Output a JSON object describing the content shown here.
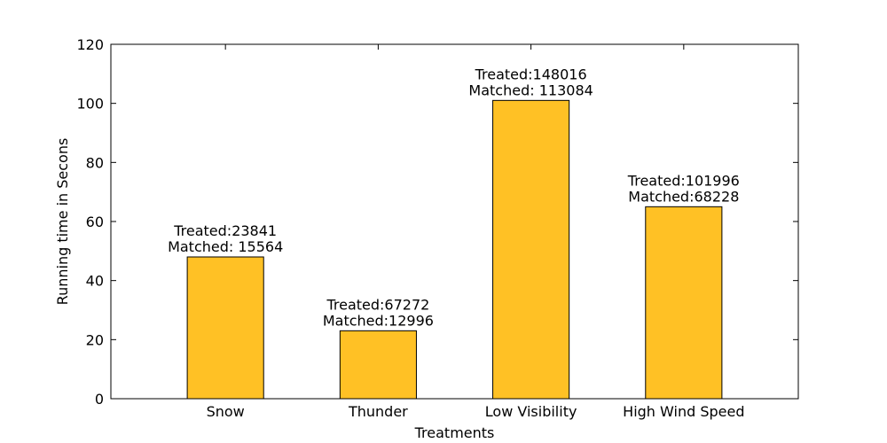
{
  "chart_data": {
    "type": "bar",
    "xlabel": "Treatments",
    "ylabel": "Running time in Secons",
    "categories": [
      "Snow",
      "Thunder",
      "Low Visibility",
      "High Wind Speed"
    ],
    "values": [
      48,
      23,
      101,
      65
    ],
    "annotations": [
      [
        "Treated:23841",
        "Matched: 15564"
      ],
      [
        "Treated:67272",
        "Matched:12996"
      ],
      [
        "Treated:148016",
        "Matched: 113084"
      ],
      [
        "Treated:101996",
        "Matched:68228"
      ]
    ],
    "ylim": [
      0,
      120
    ],
    "yticks": [
      0,
      20,
      40,
      60,
      80,
      100,
      120
    ],
    "grid": false,
    "bar_color": "#FFC125",
    "edge_color": "#000000"
  }
}
